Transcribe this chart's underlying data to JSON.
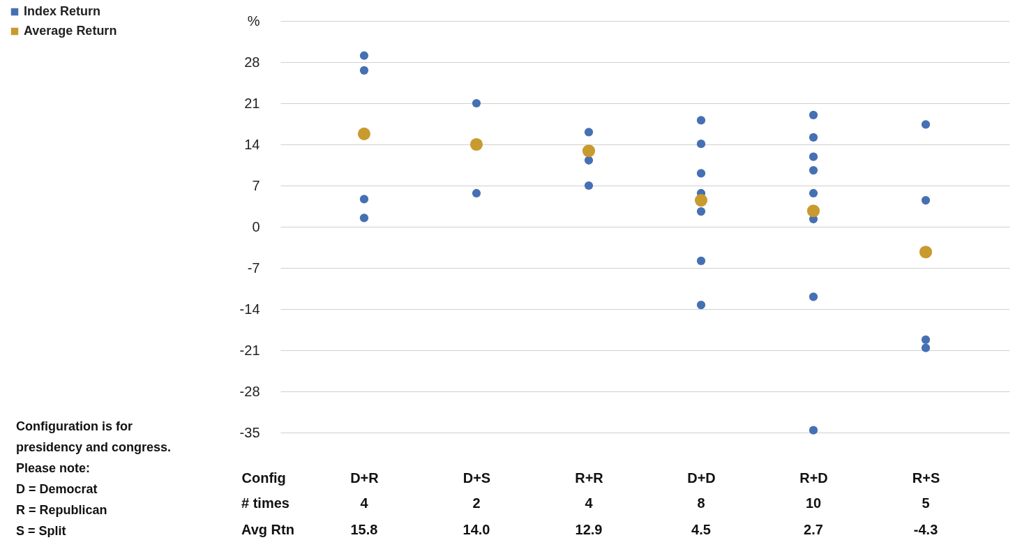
{
  "chart_data": {
    "type": "scatter",
    "xlabel": "Config",
    "categories": [
      "D+R",
      "D+S",
      "R+R",
      "D+D",
      "R+D",
      "R+S"
    ],
    "series": [
      {
        "name": "Index Return",
        "color": "#4570b3",
        "x": [
          "D+R",
          "D+R",
          "D+R",
          "D+R",
          "D+S",
          "D+S",
          "R+R",
          "R+R",
          "R+R",
          "R+R",
          "D+D",
          "D+D",
          "D+D",
          "D+D",
          "D+D",
          "D+D",
          "D+D",
          "D+D",
          "R+D",
          "R+D",
          "R+D",
          "R+D",
          "R+D",
          "R+D",
          "R+D",
          "R+D",
          "R+D",
          "R+D",
          "R+S",
          "R+S",
          "R+S",
          "R+S",
          "R+S"
        ],
        "values": [
          29.1,
          26.6,
          4.7,
          1.5,
          21.0,
          5.7,
          16.1,
          11.3,
          7.0,
          null,
          18.1,
          14.1,
          9.1,
          5.7,
          2.6,
          -5.8,
          -13.3,
          null,
          19.0,
          15.2,
          11.9,
          9.6,
          5.7,
          1.3,
          -11.9,
          -34.6,
          null,
          null,
          17.4,
          4.5,
          -19.2,
          -20.6,
          null
        ]
      },
      {
        "name": "Average Return",
        "color": "#c99a2e",
        "x": [
          "D+R",
          "D+S",
          "R+R",
          "D+D",
          "R+D",
          "R+S"
        ],
        "values": [
          15.8,
          14.0,
          12.9,
          4.5,
          2.7,
          -4.3
        ],
        "value_labels": [
          "15.8",
          "14.0",
          "12.9",
          "4.5",
          "2.7",
          "-4.3"
        ]
      }
    ],
    "ylim": [
      -35,
      35
    ],
    "yticks": [
      -35,
      -28,
      -21,
      -14,
      -7,
      0,
      7,
      14,
      21,
      28,
      {
        "value": 35,
        "label": "%"
      }
    ],
    "grid": "y",
    "legend": "top left",
    "marker": "circle",
    "annotations": [
      "Configuration is for",
      "presidency and congress.",
      "Please note:",
      "D = Democrat",
      "R = Republican",
      "S = Split",
      "# times",
      "4",
      "2",
      "4",
      "8",
      "10",
      "5",
      "Avg Rtn"
    ]
  }
}
